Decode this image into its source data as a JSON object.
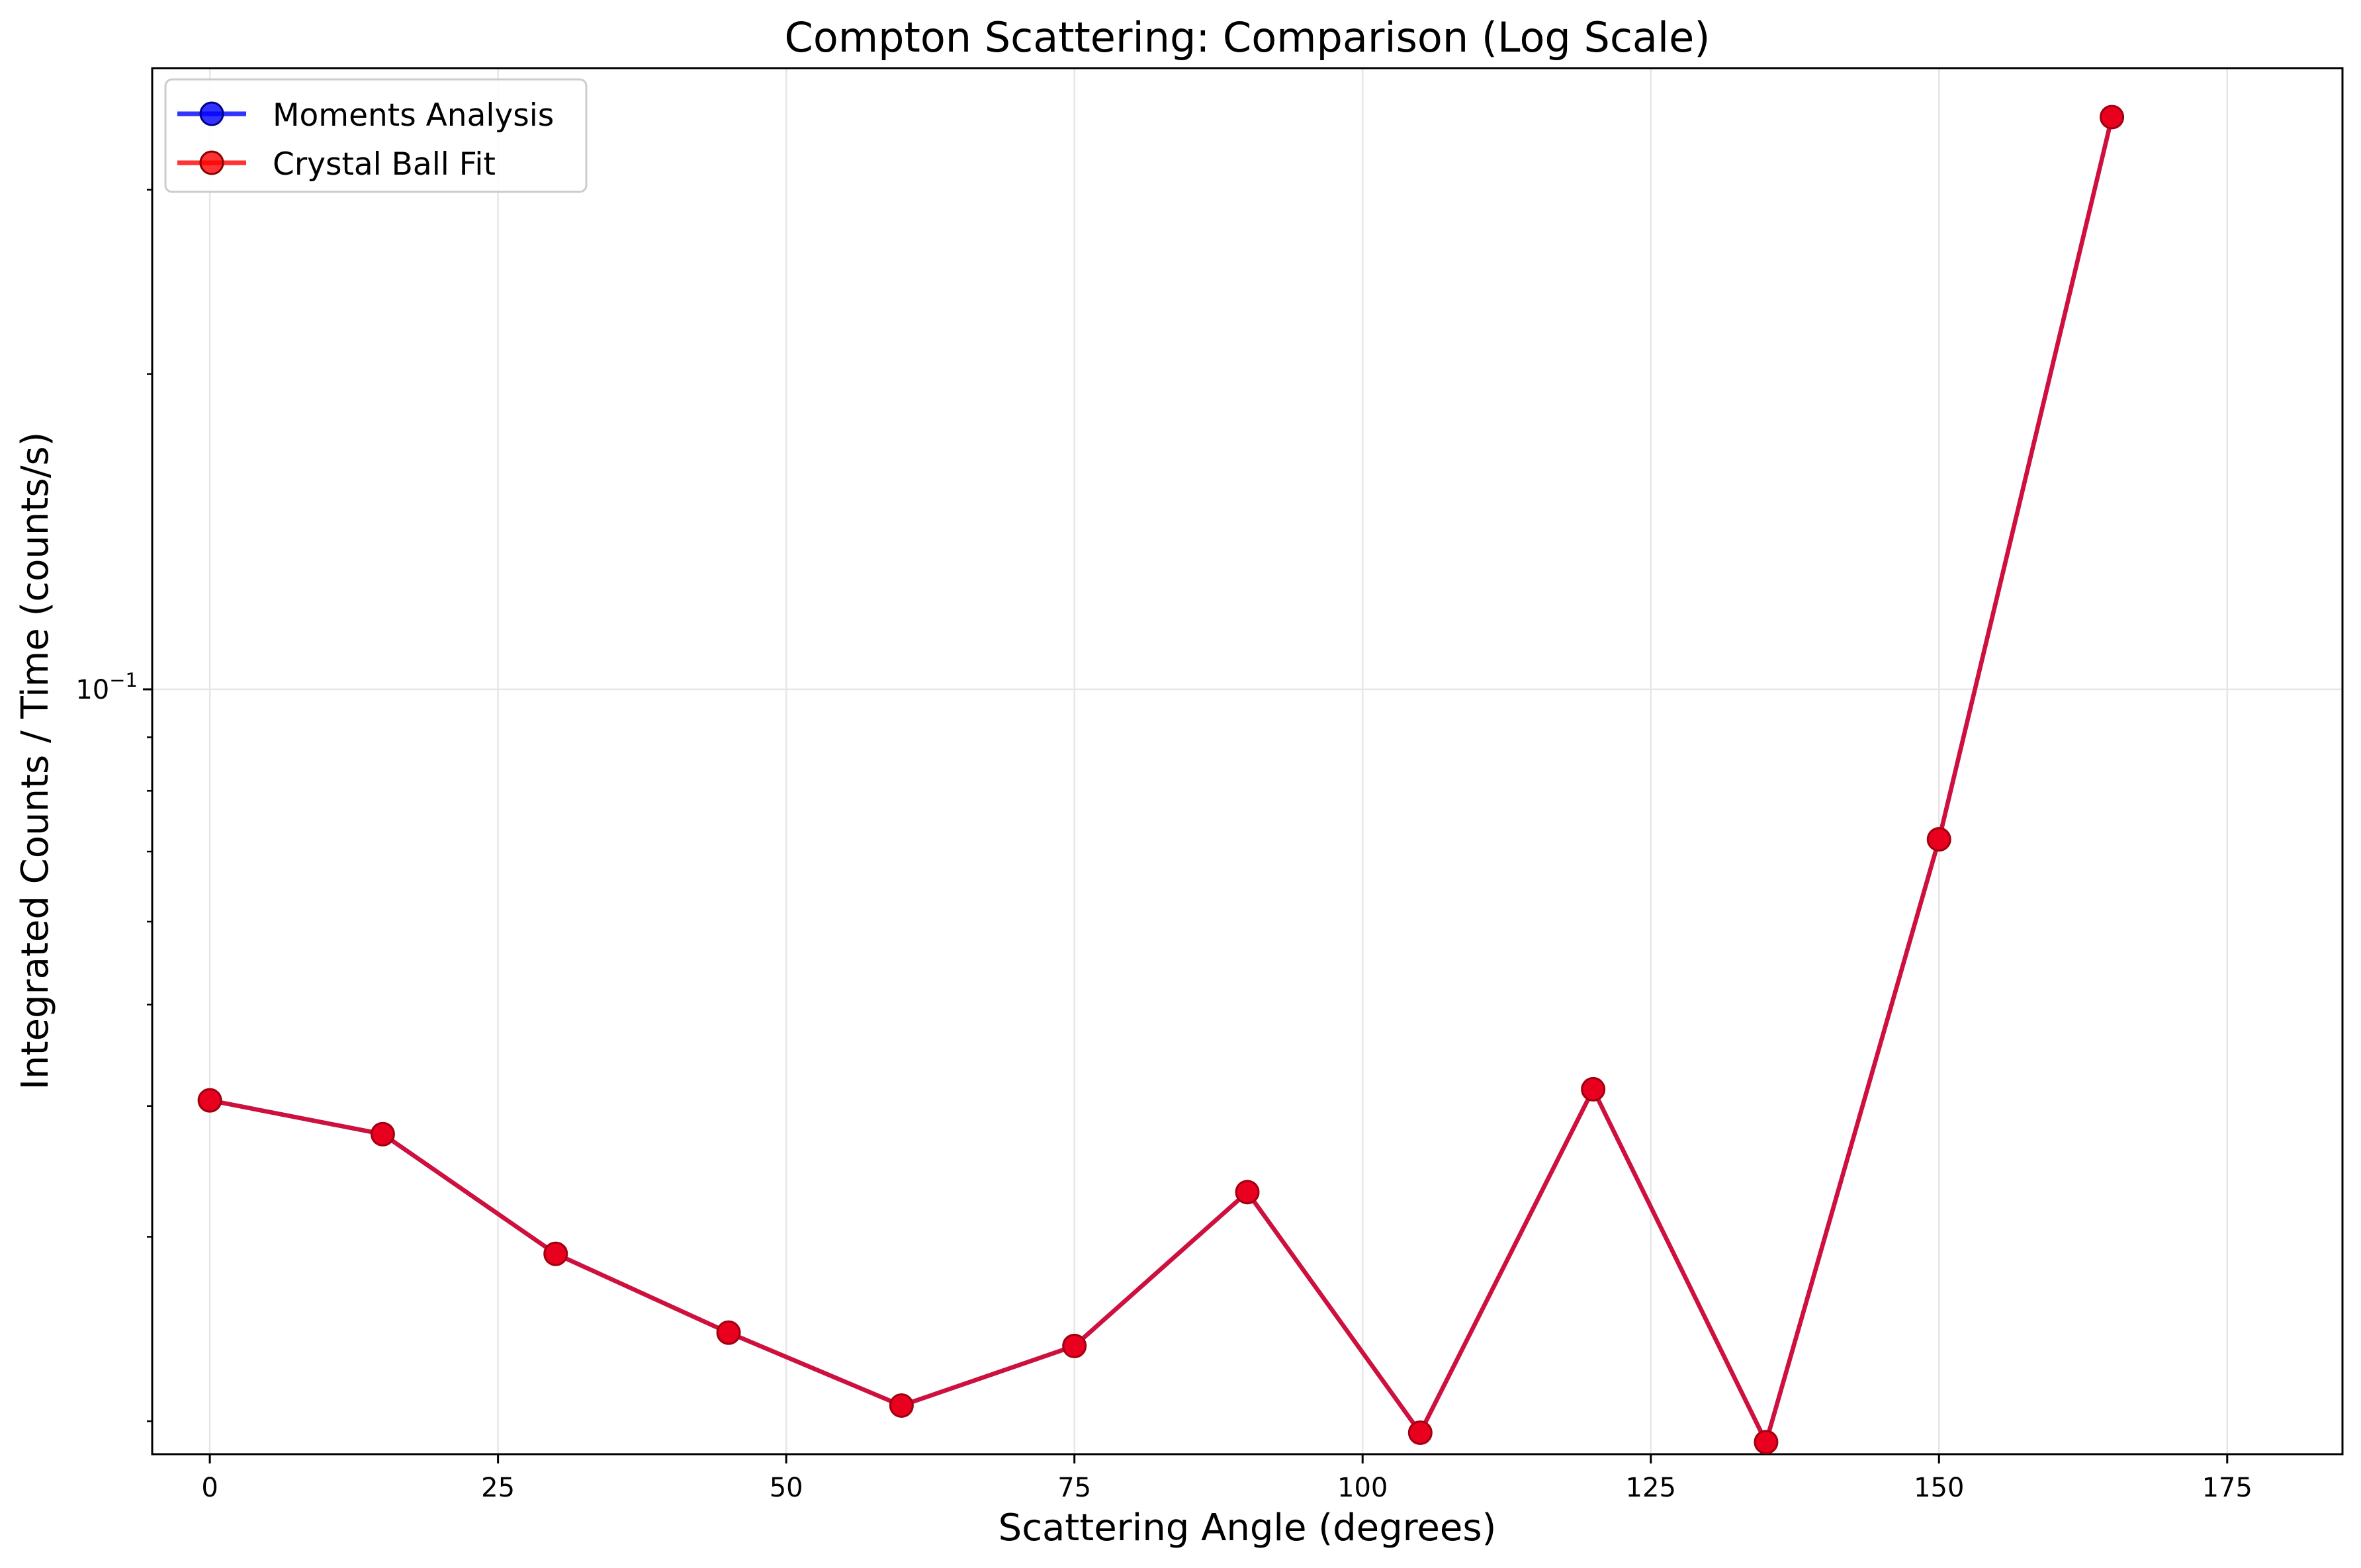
{
  "chart_data": {
    "type": "line",
    "title": "Compton Scattering: Comparison (Log Scale)",
    "xlabel": "Scattering Angle (degrees)",
    "ylabel": "Integrated Counts / Time (counts/s)",
    "x_ticks": [
      0,
      25,
      50,
      75,
      100,
      125,
      150,
      175
    ],
    "x_tick_labels": [
      "0",
      "25",
      "50",
      "75",
      "100",
      "125",
      "150",
      "175"
    ],
    "xlim": [
      -5,
      185
    ],
    "y_scale": "log",
    "ylim": [
      0.0186,
      0.392
    ],
    "y_major_ticks": [
      0.1
    ],
    "y_major_tick_label_base": "10",
    "y_major_tick_label_exp": "−1",
    "y_minor_ticks": [
      0.02,
      0.03,
      0.04,
      0.05,
      0.06,
      0.07,
      0.08,
      0.09,
      0.2,
      0.3
    ],
    "grid": true,
    "legend_position": "top-left",
    "x": [
      0,
      15,
      30,
      45,
      60,
      75,
      90,
      105,
      120,
      135,
      150,
      165
    ],
    "series": [
      {
        "name": "Moments Analysis",
        "color": "#0000ff",
        "values": [
          0.0405,
          0.0376,
          0.0289,
          0.0243,
          0.0207,
          0.0236,
          0.0331,
          0.0195,
          0.0415,
          0.0191,
          0.0719,
          0.352
        ]
      },
      {
        "name": "Crystal Ball Fit",
        "color": "#ff0000",
        "values": [
          0.0405,
          0.0376,
          0.0289,
          0.0243,
          0.0207,
          0.0236,
          0.0331,
          0.0195,
          0.0415,
          0.0191,
          0.0719,
          0.352
        ]
      }
    ]
  },
  "colors": {
    "overlap_line": "#d0103a",
    "marker_face": "#e8001e",
    "marker_edge": "#a00010",
    "grid": "#e6e6e6"
  }
}
